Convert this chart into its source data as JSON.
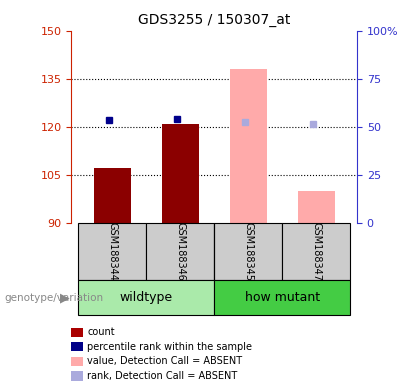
{
  "title": "GDS3255 / 150307_at",
  "samples": [
    "GSM188344",
    "GSM188346",
    "GSM188345",
    "GSM188347"
  ],
  "group_labels": [
    "wildtype",
    "how mutant"
  ],
  "ylim_left": [
    90,
    150
  ],
  "ylim_right": [
    0,
    100
  ],
  "yticks_left": [
    90,
    105,
    120,
    135,
    150
  ],
  "yticks_right": [
    0,
    25,
    50,
    75,
    100
  ],
  "ytick_labels_right": [
    "0",
    "25",
    "50",
    "75",
    "100%"
  ],
  "bar_values": [
    107,
    121,
    null,
    null
  ],
  "pink_bar_values": [
    null,
    null,
    138,
    100
  ],
  "blue_dot_values": [
    122,
    122.5,
    null,
    null
  ],
  "pink_dot_values": [
    null,
    null,
    121.5,
    121
  ],
  "bar_width": 0.55,
  "axis_left_color": "#cc2200",
  "axis_right_color": "#3333cc",
  "bar_color": "#8b0000",
  "pink_bar_color": "#ffaaaa",
  "blue_dot_color": "#00008b",
  "pink_dot_color": "#aaaadd",
  "sample_bg_color": "#cccccc",
  "wt_group_color": "#aaeaaa",
  "mut_group_color": "#44cc44",
  "genotype_label": "genotype/variation",
  "legend_items": [
    {
      "label": "count",
      "color": "#aa0000"
    },
    {
      "label": "percentile rank within the sample",
      "color": "#000088"
    },
    {
      "label": "value, Detection Call = ABSENT",
      "color": "#ffaaaa"
    },
    {
      "label": "rank, Detection Call = ABSENT",
      "color": "#aaaadd"
    }
  ]
}
